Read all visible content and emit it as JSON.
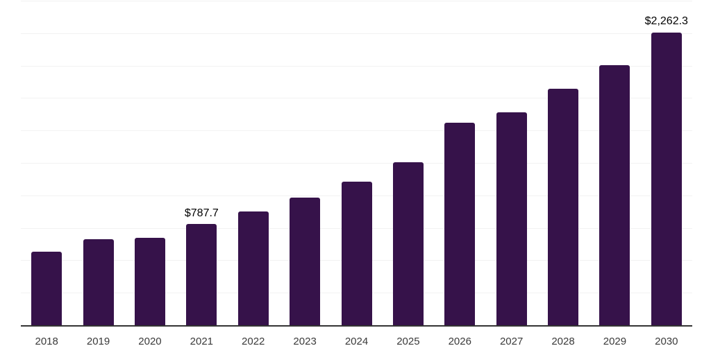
{
  "chart_data": {
    "type": "bar",
    "title": "",
    "xlabel": "",
    "ylabel": "",
    "categories": [
      "2018",
      "2019",
      "2020",
      "2021",
      "2022",
      "2023",
      "2024",
      "2025",
      "2026",
      "2027",
      "2028",
      "2029",
      "2030"
    ],
    "values": [
      569,
      670,
      681,
      787.7,
      882,
      989,
      1111,
      1259,
      1566,
      1643,
      1829,
      2009,
      2262.3
    ],
    "data_labels": {
      "2021": "$787.7",
      "2030": "$2,262.3"
    },
    "ylim": [
      0,
      2500
    ],
    "gridline_step": 250,
    "grid": "horizontal-only",
    "legend": "none",
    "y_axis_tick_labels": "hidden",
    "colors": {
      "bar": "#36124a",
      "axis_line": "#333333",
      "gridline": "#f2f2f2",
      "data_label": "#000000",
      "tick_label": "#3a3a3a",
      "background": "#ffffff"
    }
  }
}
